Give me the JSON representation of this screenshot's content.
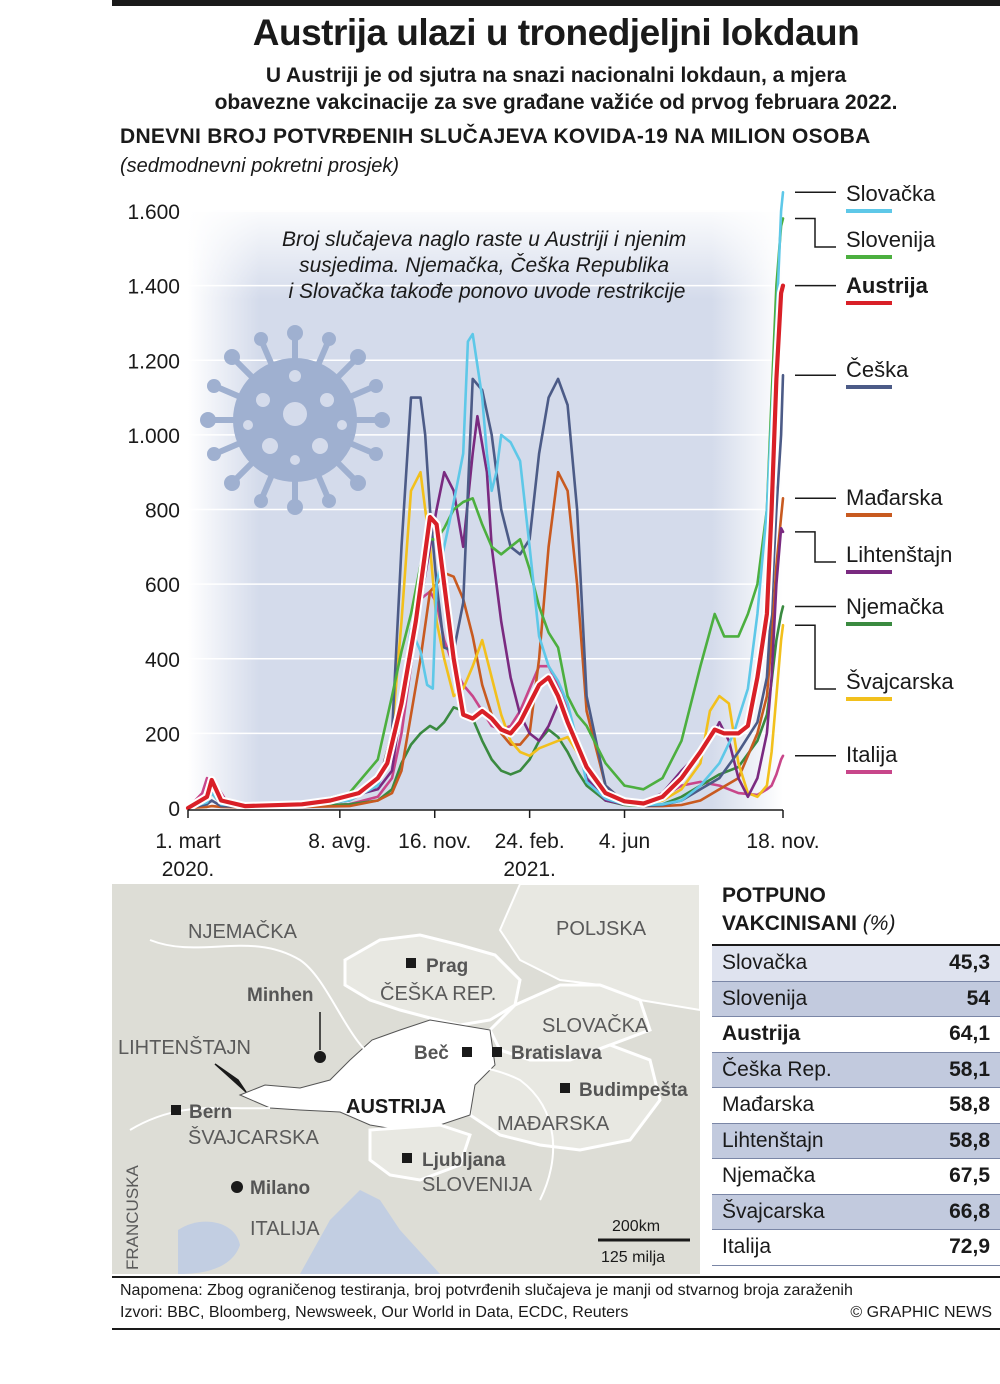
{
  "header": {
    "title": "Austrija ulazi u tronedjeljni lokdaun",
    "subtitle_line1": "U Austriji je od sjutra na snazi nacionalni lokdaun, a mjera",
    "subtitle_line2": "obavezne vakcinacije za sve građane važiće od prvog februara 2022."
  },
  "chart_data": {
    "type": "line",
    "title": "DNEVNI BROJ POTVRĐENIH SLUČAJEVA KOVIDA-19 NA MILION OSOBA",
    "subtitle": "(sedmodnevni pokretni prosjek)",
    "xlabel": "",
    "ylabel": "",
    "ylim": [
      0,
      1600
    ],
    "yticks": [
      0,
      200,
      400,
      600,
      800,
      1000,
      1200,
      1400,
      1600
    ],
    "ytick_labels": [
      "0",
      "200",
      "400",
      "600",
      "800",
      "1.000",
      "1.200",
      "1.400",
      "1.600"
    ],
    "x_unit": "days since 1 March 2020",
    "xlim": [
      0,
      627
    ],
    "x_ticks": [
      {
        "x": 0,
        "label": "1. mart",
        "sub": "2020."
      },
      {
        "x": 160,
        "label": "8. avg.",
        "sub": ""
      },
      {
        "x": 260,
        "label": "16. nov.",
        "sub": ""
      },
      {
        "x": 360,
        "label": "24. feb.",
        "sub": "2021."
      },
      {
        "x": 460,
        "label": "4. jun",
        "sub": ""
      },
      {
        "x": 627,
        "label": "18. nov.",
        "sub": ""
      }
    ],
    "annotation": "Broj slučajeva naglo raste u Austriji i njenim susjedima. Njemačka, Češka Republika i Slovačka takođe ponovo uvode restrikcije",
    "series": [
      {
        "name": "Slovačka",
        "color": "#5ec8e8",
        "width": 2.6,
        "x": [
          0,
          20,
          25,
          35,
          60,
          120,
          170,
          200,
          215,
          225,
          235,
          245,
          252,
          258,
          262,
          270,
          280,
          290,
          295,
          300,
          310,
          315,
          320,
          325,
          330,
          340,
          350,
          360,
          370,
          380,
          390,
          400,
          410,
          420,
          440,
          460,
          480,
          500,
          520,
          540,
          560,
          575,
          590,
          600,
          610,
          615,
          620,
          625,
          627
        ],
        "y": [
          0,
          15,
          40,
          10,
          4,
          5,
          20,
          60,
          150,
          300,
          480,
          420,
          330,
          320,
          600,
          700,
          820,
          950,
          1250,
          1270,
          1100,
          950,
          850,
          900,
          1000,
          980,
          930,
          700,
          460,
          380,
          340,
          280,
          180,
          70,
          25,
          10,
          8,
          10,
          20,
          60,
          120,
          200,
          320,
          520,
          800,
          1050,
          1300,
          1600,
          1650
        ]
      },
      {
        "name": "Slovenija",
        "color": "#4caf3f",
        "width": 2.6,
        "x": [
          0,
          20,
          25,
          35,
          60,
          120,
          170,
          200,
          215,
          225,
          235,
          245,
          255,
          262,
          270,
          280,
          290,
          300,
          310,
          320,
          330,
          340,
          350,
          360,
          370,
          380,
          390,
          400,
          410,
          420,
          440,
          460,
          480,
          500,
          520,
          540,
          555,
          565,
          580,
          590,
          600,
          610,
          615,
          620,
          625,
          627
        ],
        "y": [
          0,
          30,
          60,
          15,
          5,
          10,
          40,
          130,
          300,
          420,
          520,
          650,
          720,
          720,
          750,
          800,
          820,
          830,
          760,
          700,
          680,
          700,
          720,
          640,
          540,
          470,
          430,
          300,
          250,
          220,
          120,
          60,
          50,
          80,
          180,
          380,
          520,
          460,
          460,
          520,
          600,
          800,
          1100,
          1400,
          1560,
          1580
        ]
      },
      {
        "name": "Austrija",
        "color": "#d92027",
        "width": 4.2,
        "halo": true,
        "x": [
          0,
          20,
          25,
          35,
          60,
          120,
          150,
          180,
          200,
          210,
          225,
          240,
          255,
          262,
          270,
          280,
          290,
          300,
          310,
          320,
          330,
          340,
          350,
          360,
          370,
          380,
          390,
          400,
          410,
          420,
          440,
          460,
          480,
          500,
          520,
          540,
          555,
          565,
          580,
          590,
          600,
          610,
          615,
          620,
          625,
          627
        ],
        "y": [
          0,
          30,
          75,
          20,
          5,
          10,
          20,
          40,
          80,
          120,
          280,
          500,
          780,
          760,
          600,
          400,
          250,
          240,
          260,
          240,
          210,
          200,
          230,
          280,
          330,
          350,
          300,
          230,
          170,
          110,
          40,
          18,
          12,
          30,
          80,
          150,
          210,
          200,
          200,
          220,
          350,
          520,
          800,
          1150,
          1380,
          1400
        ]
      },
      {
        "name": "Češka",
        "color": "#4c5b87",
        "width": 2.6,
        "x": [
          0,
          20,
          25,
          35,
          60,
          120,
          170,
          200,
          215,
          225,
          235,
          245,
          250,
          255,
          262,
          270,
          280,
          290,
          300,
          310,
          320,
          330,
          340,
          350,
          360,
          370,
          380,
          390,
          400,
          410,
          420,
          440,
          460,
          480,
          500,
          520,
          540,
          560,
          580,
          600,
          610,
          615,
          620,
          625,
          627
        ],
        "y": [
          0,
          10,
          20,
          5,
          3,
          5,
          20,
          60,
          200,
          700,
          1100,
          1100,
          1000,
          800,
          600,
          430,
          420,
          550,
          1150,
          1120,
          1000,
          800,
          700,
          680,
          720,
          950,
          1100,
          1150,
          1080,
          800,
          300,
          60,
          15,
          5,
          8,
          20,
          50,
          80,
          150,
          230,
          350,
          550,
          800,
          1000,
          1160
        ]
      },
      {
        "name": "Mađarska",
        "color": "#c85a20",
        "width": 2.6,
        "x": [
          0,
          20,
          25,
          35,
          60,
          120,
          170,
          200,
          215,
          225,
          235,
          245,
          255,
          262,
          270,
          280,
          290,
          300,
          310,
          320,
          330,
          340,
          350,
          360,
          370,
          380,
          390,
          400,
          410,
          420,
          440,
          460,
          480,
          500,
          520,
          540,
          560,
          580,
          600,
          610,
          615,
          620,
          625,
          627
        ],
        "y": [
          0,
          3,
          5,
          3,
          2,
          3,
          5,
          20,
          40,
          100,
          250,
          400,
          580,
          600,
          630,
          620,
          560,
          460,
          330,
          250,
          200,
          170,
          170,
          200,
          400,
          700,
          900,
          850,
          600,
          260,
          60,
          15,
          5,
          5,
          8,
          20,
          50,
          80,
          200,
          300,
          450,
          650,
          780,
          830
        ]
      },
      {
        "name": "Lihtenštajn",
        "color": "#7a2a80",
        "width": 2.6,
        "x": [
          0,
          20,
          25,
          35,
          60,
          120,
          170,
          200,
          215,
          225,
          235,
          245,
          255,
          262,
          270,
          280,
          290,
          300,
          305,
          315,
          320,
          330,
          340,
          350,
          360,
          370,
          380,
          390,
          400,
          410,
          420,
          440,
          460,
          480,
          500,
          520,
          540,
          550,
          560,
          570,
          580,
          590,
          600,
          610,
          615,
          620,
          625,
          627
        ],
        "y": [
          0,
          20,
          50,
          10,
          3,
          5,
          30,
          50,
          100,
          280,
          400,
          550,
          700,
          800,
          900,
          850,
          700,
          950,
          1050,
          900,
          700,
          500,
          350,
          250,
          200,
          180,
          220,
          280,
          250,
          170,
          80,
          20,
          10,
          15,
          40,
          100,
          150,
          180,
          230,
          180,
          80,
          30,
          80,
          200,
          350,
          600,
          750,
          740
        ]
      },
      {
        "name": "Njemačka",
        "color": "#3a8a40",
        "width": 2.6,
        "x": [
          0,
          20,
          25,
          35,
          60,
          120,
          170,
          200,
          215,
          225,
          235,
          245,
          255,
          262,
          270,
          280,
          290,
          300,
          310,
          320,
          330,
          340,
          350,
          360,
          370,
          380,
          390,
          400,
          410,
          420,
          440,
          460,
          480,
          500,
          520,
          540,
          560,
          580,
          600,
          610,
          615,
          620,
          625,
          627
        ],
        "y": [
          0,
          30,
          50,
          25,
          10,
          5,
          10,
          20,
          50,
          120,
          170,
          200,
          220,
          210,
          230,
          270,
          260,
          240,
          180,
          130,
          100,
          90,
          100,
          130,
          180,
          210,
          190,
          150,
          100,
          60,
          20,
          8,
          5,
          10,
          30,
          60,
          90,
          110,
          180,
          250,
          340,
          450,
          520,
          540
        ]
      },
      {
        "name": "Švajcarska",
        "color": "#f2c01c",
        "width": 2.6,
        "x": [
          0,
          20,
          25,
          35,
          60,
          120,
          170,
          200,
          215,
          225,
          235,
          245,
          255,
          262,
          270,
          280,
          290,
          300,
          310,
          320,
          330,
          340,
          350,
          360,
          370,
          380,
          390,
          400,
          410,
          420,
          440,
          460,
          480,
          500,
          520,
          540,
          550,
          560,
          570,
          580,
          590,
          600,
          610,
          615,
          620,
          625,
          627
        ],
        "y": [
          0,
          15,
          40,
          10,
          3,
          5,
          20,
          60,
          200,
          500,
          850,
          900,
          700,
          500,
          400,
          300,
          320,
          380,
          450,
          350,
          250,
          180,
          150,
          140,
          160,
          170,
          180,
          190,
          150,
          100,
          40,
          10,
          8,
          20,
          50,
          120,
          260,
          300,
          280,
          120,
          40,
          30,
          60,
          150,
          300,
          450,
          490
        ]
      },
      {
        "name": "Italija",
        "color": "#c8468a",
        "width": 2.6,
        "x": [
          0,
          15,
          20,
          30,
          40,
          60,
          120,
          170,
          200,
          215,
          225,
          235,
          245,
          255,
          262,
          270,
          280,
          290,
          300,
          310,
          320,
          330,
          340,
          350,
          360,
          370,
          380,
          390,
          400,
          410,
          420,
          440,
          460,
          480,
          500,
          520,
          540,
          560,
          580,
          600,
          610,
          615,
          620,
          625,
          627
        ],
        "y": [
          0,
          40,
          80,
          60,
          20,
          5,
          5,
          10,
          30,
          80,
          200,
          380,
          560,
          580,
          550,
          450,
          380,
          330,
          300,
          260,
          220,
          210,
          220,
          260,
          320,
          380,
          380,
          330,
          260,
          180,
          110,
          40,
          15,
          10,
          30,
          60,
          70,
          60,
          40,
          35,
          50,
          60,
          90,
          130,
          140
        ]
      }
    ]
  },
  "legend": [
    {
      "label": "Slovačka",
      "color": "#5ec8e8",
      "bold": false
    },
    {
      "label": "Slovenija",
      "color": "#4caf3f",
      "bold": false
    },
    {
      "label": "Austrija",
      "color": "#d92027",
      "bold": true
    },
    {
      "label": "Češka",
      "color": "#4c5b87",
      "bold": false
    },
    {
      "label": "Mađarska",
      "color": "#c85a20",
      "bold": false
    },
    {
      "label": "Lihtenštajn",
      "color": "#7a2a80",
      "bold": false
    },
    {
      "label": "Njemačka",
      "color": "#3a8a40",
      "bold": false
    },
    {
      "label": "Švajcarska",
      "color": "#f2c01c",
      "bold": false
    },
    {
      "label": "Italija",
      "color": "#c8468a",
      "bold": false
    }
  ],
  "map": {
    "countries": [
      "NJEMAČKA",
      "POLJSKA",
      "ČEŠKA REP.",
      "SLOVAČKA",
      "LIHTENŠTAJN",
      "AUSTRIJA",
      "MAĐARSKA",
      "ŠVAJCARSKA",
      "SLOVENIJA",
      "ITALIJA",
      "FRANCUSKA"
    ],
    "cities": [
      "Prag",
      "Minhen",
      "Beč",
      "Bratislava",
      "Budimpešta",
      "Bern",
      "Ljubljana",
      "Milano"
    ],
    "scale_km": "200km",
    "scale_mi": "125 milja"
  },
  "vaccination": {
    "title_line1": "POTPUNO",
    "title_line2": "VAKCINISANI",
    "unit": "(%)",
    "rows": [
      {
        "country": "Slovačka",
        "value": "45,3"
      },
      {
        "country": "Slovenija",
        "value": "54"
      },
      {
        "country": "Austrija",
        "value": "64,1"
      },
      {
        "country": "Češka Rep.",
        "value": "58,1"
      },
      {
        "country": "Mađarska",
        "value": "58,8"
      },
      {
        "country": "Lihtenštajn",
        "value": "58,8"
      },
      {
        "country": "Njemačka",
        "value": "67,5"
      },
      {
        "country": "Švajcarska",
        "value": "66,8"
      },
      {
        "country": "Italija",
        "value": "72,9"
      }
    ]
  },
  "footer": {
    "note": "Napomena: Zbog ograničenog testiranja, broj potvrđenih slučajeva je manji od stvarnog broja zaraženih",
    "sources": "Izvori: BBC, Bloomberg, Newsweek, Our World in Data, ECDC, Reuters",
    "credit": "© GRAPHIC NEWS"
  }
}
